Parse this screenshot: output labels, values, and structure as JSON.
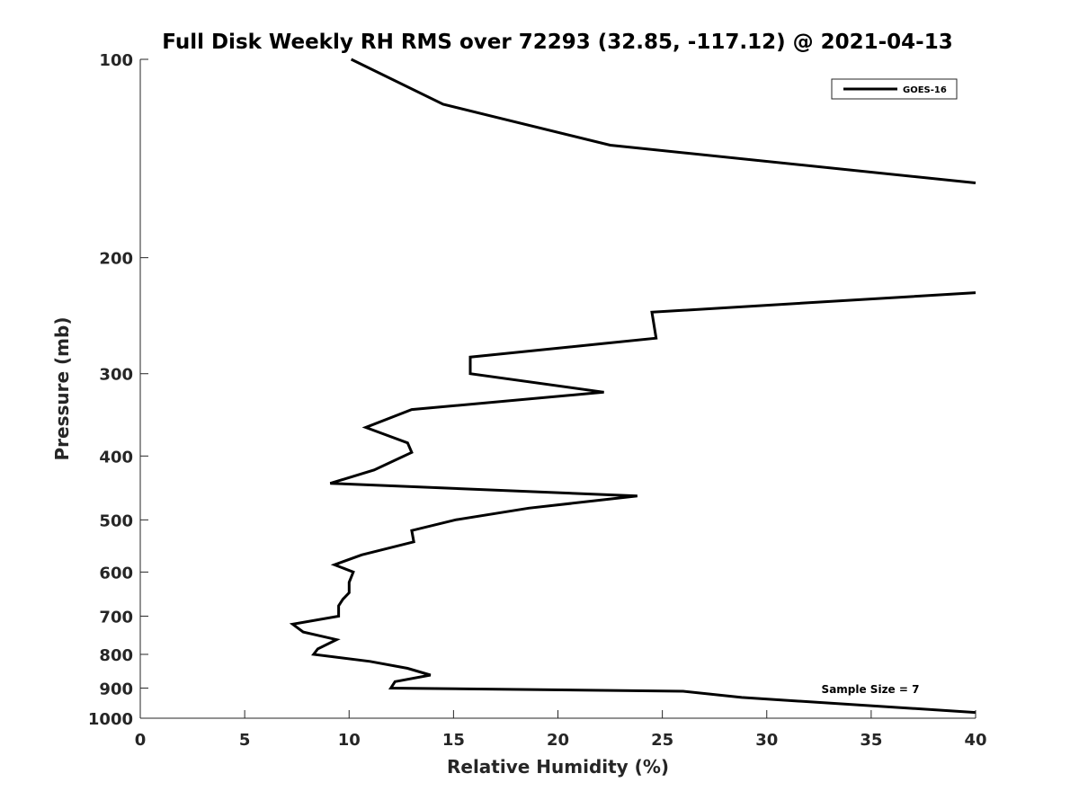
{
  "chart_data": {
    "type": "line",
    "title": "Full Disk Weekly RH RMS over 72293 (32.85, -117.12) @ 2021-04-13",
    "xlabel": "Relative Humidity (%)",
    "ylabel": "Pressure (mb)",
    "xlim": [
      0,
      40
    ],
    "ylim": [
      100,
      1000
    ],
    "yscale": "log",
    "y_reversed": true,
    "grid": false,
    "legend_position": "top-right",
    "xticks": [
      0,
      5,
      10,
      15,
      20,
      25,
      30,
      35,
      40
    ],
    "xtick_labels": [
      "0",
      "5",
      "10",
      "15",
      "20",
      "25",
      "30",
      "35",
      "40"
    ],
    "yticks": [
      100,
      200,
      300,
      400,
      500,
      600,
      700,
      800,
      900,
      1000
    ],
    "ytick_labels": [
      "100",
      "200",
      "300",
      "400",
      "500",
      "600",
      "700",
      "800",
      "900",
      "1000"
    ],
    "series": [
      {
        "name": "GOES-16",
        "color": "#000000",
        "segments": [
          [
            {
              "x": 10.1,
              "y": 100
            },
            {
              "x": 14.5,
              "y": 117
            },
            {
              "x": 22.5,
              "y": 135
            },
            {
              "x": 40.0,
              "y": 154
            }
          ],
          [
            {
              "x": 40.0,
              "y": 226
            },
            {
              "x": 24.5,
              "y": 242
            },
            {
              "x": 24.7,
              "y": 265
            },
            {
              "x": 15.8,
              "y": 283
            },
            {
              "x": 15.8,
              "y": 300
            },
            {
              "x": 22.2,
              "y": 320
            },
            {
              "x": 13.0,
              "y": 340
            },
            {
              "x": 10.8,
              "y": 362
            },
            {
              "x": 12.8,
              "y": 382
            },
            {
              "x": 13.0,
              "y": 395
            },
            {
              "x": 11.2,
              "y": 420
            },
            {
              "x": 9.1,
              "y": 440
            },
            {
              "x": 23.8,
              "y": 460
            },
            {
              "x": 18.6,
              "y": 480
            },
            {
              "x": 15.1,
              "y": 500
            },
            {
              "x": 13.0,
              "y": 519
            },
            {
              "x": 13.1,
              "y": 540
            },
            {
              "x": 10.6,
              "y": 565
            },
            {
              "x": 9.3,
              "y": 585
            },
            {
              "x": 10.2,
              "y": 600
            },
            {
              "x": 10.0,
              "y": 622
            },
            {
              "x": 10.0,
              "y": 645
            },
            {
              "x": 9.7,
              "y": 660
            },
            {
              "x": 9.5,
              "y": 675
            },
            {
              "x": 9.5,
              "y": 700
            },
            {
              "x": 7.3,
              "y": 720
            },
            {
              "x": 7.8,
              "y": 740
            },
            {
              "x": 9.4,
              "y": 760
            },
            {
              "x": 8.5,
              "y": 785
            },
            {
              "x": 8.3,
              "y": 800
            },
            {
              "x": 11.0,
              "y": 820
            },
            {
              "x": 12.8,
              "y": 840
            },
            {
              "x": 13.9,
              "y": 860
            },
            {
              "x": 12.2,
              "y": 880
            },
            {
              "x": 12.0,
              "y": 900
            },
            {
              "x": 26.0,
              "y": 910
            },
            {
              "x": 28.8,
              "y": 930
            },
            {
              "x": 40.0,
              "y": 980
            }
          ]
        ]
      }
    ],
    "annotations": [
      {
        "text": "Sample Size = 7"
      }
    ]
  }
}
